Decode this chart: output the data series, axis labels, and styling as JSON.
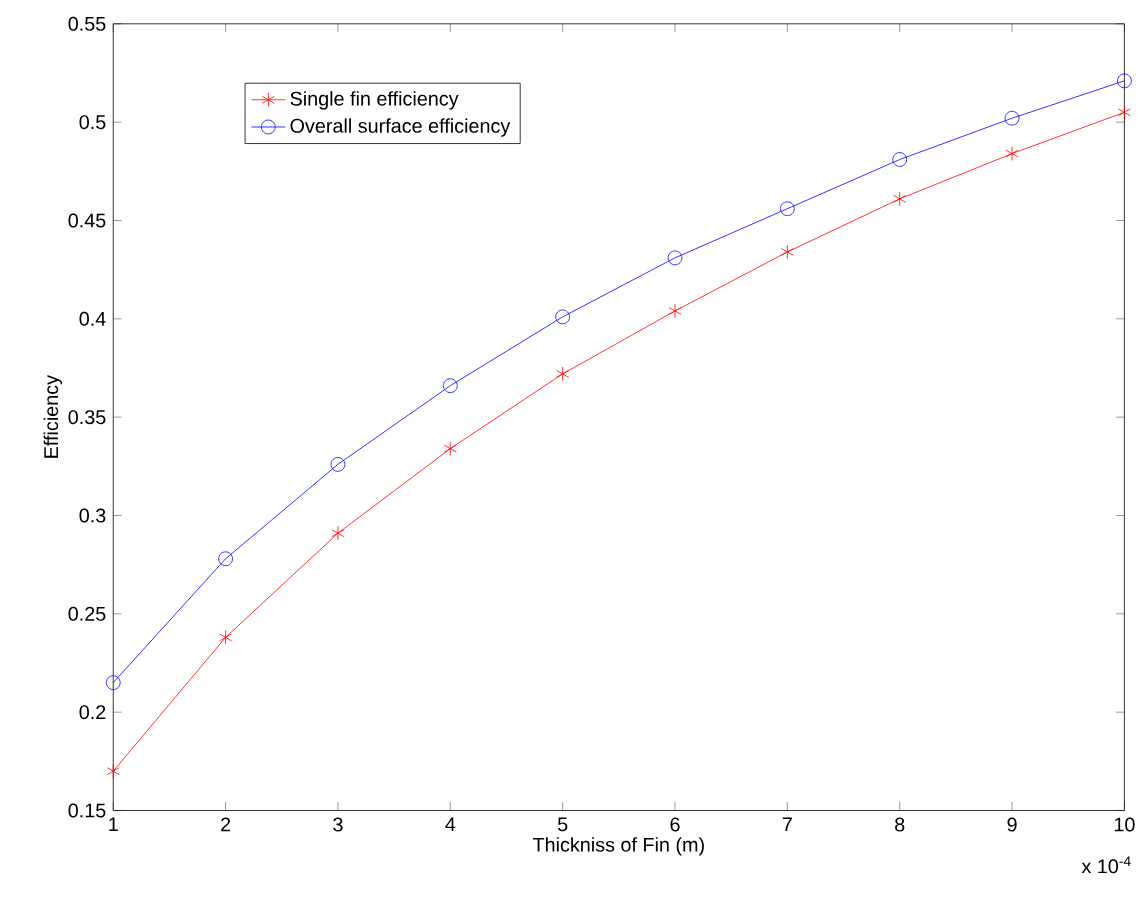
{
  "chart_data": {
    "type": "line",
    "xlabel": "Thickniss of Fin (m)",
    "ylabel": "Efficiency",
    "x": [
      1,
      2,
      3,
      4,
      5,
      6,
      7,
      8,
      9,
      10
    ],
    "series": [
      {
        "name": "Single fin efficiency",
        "color": "#ff0000",
        "marker": "cross",
        "values": [
          0.17,
          0.238,
          0.291,
          0.334,
          0.372,
          0.404,
          0.434,
          0.461,
          0.484,
          0.505
        ]
      },
      {
        "name": "Overall surface efficiency",
        "color": "#0000ff",
        "marker": "circle",
        "values": [
          0.215,
          0.278,
          0.326,
          0.366,
          0.401,
          0.431,
          0.456,
          0.481,
          0.502,
          0.521
        ]
      }
    ],
    "xlim": [
      1,
      10
    ],
    "xticks": [
      1,
      2,
      3,
      4,
      5,
      6,
      7,
      8,
      9,
      10
    ],
    "ylim": [
      0.15,
      0.55
    ],
    "yticks": [
      0.15,
      0.2,
      0.25,
      0.3,
      0.35,
      0.4,
      0.45,
      0.5,
      0.55
    ],
    "annotations": [
      "x 10$^{-4}$"
    ],
    "legend": "top left",
    "grid": false,
    "line_style": "solid"
  }
}
